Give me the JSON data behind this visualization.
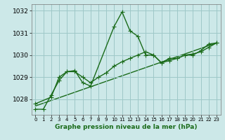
{
  "xlabel": "Graphe pression niveau de la mer (hPa)",
  "bg_color": "#cce8e8",
  "grid_color": "#9ec8c8",
  "line_color": "#1a6b1a",
  "ylim": [
    1027.3,
    1032.3
  ],
  "xlim": [
    -0.5,
    23.5
  ],
  "yticks": [
    1028,
    1029,
    1030,
    1031,
    1032
  ],
  "xticks": [
    0,
    1,
    2,
    3,
    4,
    5,
    6,
    7,
    8,
    9,
    10,
    11,
    12,
    13,
    14,
    15,
    16,
    17,
    18,
    19,
    20,
    21,
    22,
    23
  ],
  "series1_x": [
    0,
    1,
    2,
    3,
    4,
    5,
    6,
    7,
    10,
    11,
    12,
    13,
    14,
    15,
    16,
    17,
    18,
    19,
    20,
    21,
    22,
    23
  ],
  "series1_y": [
    1027.55,
    1027.55,
    1028.2,
    1028.85,
    1029.25,
    1029.3,
    1028.75,
    1028.6,
    1031.3,
    1031.95,
    1031.1,
    1030.85,
    1030.0,
    1030.0,
    1029.65,
    1029.85,
    1029.85,
    1030.0,
    1030.0,
    1030.2,
    1030.5,
    1030.55
  ],
  "series2_x": [
    0,
    2,
    3,
    4,
    5,
    6,
    7,
    8,
    9,
    10,
    11,
    12,
    13,
    14,
    15,
    16,
    17,
    18,
    19,
    20,
    21,
    22,
    23
  ],
  "series2_y": [
    1027.8,
    1028.1,
    1029.0,
    1029.25,
    1029.25,
    1029.0,
    1028.75,
    1029.0,
    1029.2,
    1029.5,
    1029.7,
    1029.85,
    1030.0,
    1030.15,
    1030.0,
    1029.65,
    1029.75,
    1029.85,
    1030.0,
    1030.05,
    1030.15,
    1030.35,
    1030.55
  ],
  "series3_x": [
    0,
    23
  ],
  "series3_y": [
    1027.7,
    1030.55
  ],
  "markersize": 4,
  "linewidth": 1.0
}
